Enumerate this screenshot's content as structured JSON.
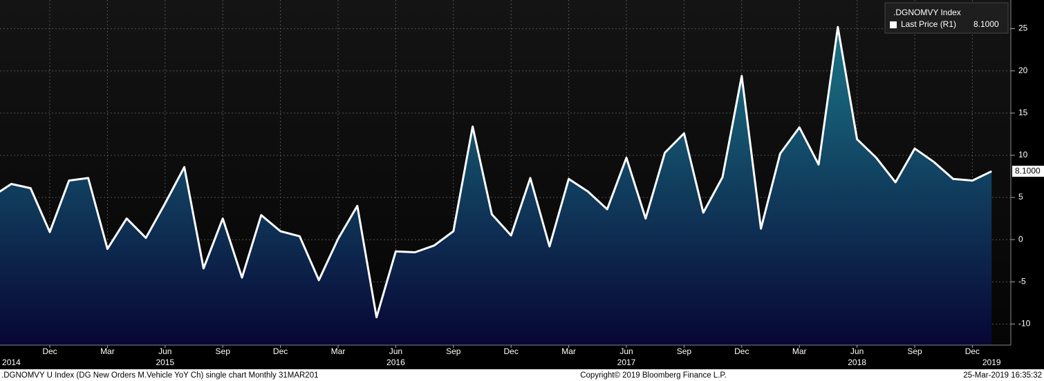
{
  "chart_data": {
    "type": "area",
    "legend_title": ".DGNOMVY Index",
    "footer": {
      "left": ".DGNOMVY U Index (DG New Orders M.Vehicle YoY Ch) single chart  Monthly 31MAR201",
      "center": "Copyright© 2019 Bloomberg Finance L.P.",
      "right": "25-Mar-2019 16:35:32"
    },
    "x": [
      "2014-09",
      "2014-10",
      "2014-11",
      "2014-12",
      "2015-01",
      "2015-02",
      "2015-03",
      "2015-04",
      "2015-05",
      "2015-06",
      "2015-07",
      "2015-08",
      "2015-09",
      "2015-10",
      "2015-11",
      "2015-12",
      "2016-01",
      "2016-02",
      "2016-03",
      "2016-04",
      "2016-05",
      "2016-06",
      "2016-07",
      "2016-08",
      "2016-09",
      "2016-10",
      "2016-11",
      "2016-12",
      "2017-01",
      "2017-02",
      "2017-03",
      "2017-04",
      "2017-05",
      "2017-06",
      "2017-07",
      "2017-08",
      "2017-09",
      "2017-10",
      "2017-11",
      "2017-12",
      "2018-01",
      "2018-02",
      "2018-03",
      "2018-04",
      "2018-05",
      "2018-06",
      "2018-07",
      "2018-08",
      "2018-09",
      "2018-10",
      "2018-11",
      "2018-12",
      "2019-01"
    ],
    "series": [
      {
        "name": "Last Price  (R1)",
        "color": "#ffffff",
        "last_value_label": "8.1000",
        "values": [
          5.1,
          6.6,
          6.1,
          0.9,
          7.0,
          7.3,
          -1.1,
          2.5,
          0.2,
          4.3,
          8.6,
          -3.4,
          2.5,
          -4.5,
          2.9,
          1.0,
          0.4,
          -4.8,
          0.1,
          4.0,
          -9.2,
          -1.4,
          -1.5,
          -0.7,
          1.0,
          13.4,
          3.0,
          0.5,
          7.3,
          -0.8,
          7.2,
          5.7,
          3.6,
          9.7,
          2.5,
          10.3,
          12.6,
          3.2,
          7.4,
          19.4,
          1.3,
          10.2,
          13.3,
          8.9,
          25.2,
          11.9,
          9.7,
          6.8,
          10.8,
          9.2,
          7.2,
          7.0,
          8.1
        ]
      }
    ],
    "xticks": [
      {
        "value": "2014-12",
        "label": "Dec"
      },
      {
        "value": "2015-03",
        "label": "Mar"
      },
      {
        "value": "2015-06",
        "label": "Jun"
      },
      {
        "value": "2015-09",
        "label": "Sep"
      },
      {
        "value": "2015-12",
        "label": "Dec"
      },
      {
        "value": "2016-03",
        "label": "Mar"
      },
      {
        "value": "2016-06",
        "label": "Jun"
      },
      {
        "value": "2016-09",
        "label": "Sep"
      },
      {
        "value": "2016-12",
        "label": "Dec"
      },
      {
        "value": "2017-03",
        "label": "Mar"
      },
      {
        "value": "2017-06",
        "label": "Jun"
      },
      {
        "value": "2017-09",
        "label": "Sep"
      },
      {
        "value": "2017-12",
        "label": "Dec"
      },
      {
        "value": "2018-03",
        "label": "Mar"
      },
      {
        "value": "2018-06",
        "label": "Jun"
      },
      {
        "value": "2018-09",
        "label": "Sep"
      },
      {
        "value": "2018-12",
        "label": "Dec"
      }
    ],
    "year_labels": [
      {
        "value": "2014-10",
        "label": "2014"
      },
      {
        "value": "2015-06",
        "label": "2015"
      },
      {
        "value": "2016-06",
        "label": "2016"
      },
      {
        "value": "2017-06",
        "label": "2017"
      },
      {
        "value": "2018-06",
        "label": "2018"
      },
      {
        "value": "2019-01",
        "label": "2019"
      }
    ],
    "ylim": [
      -12.5,
      28.4
    ],
    "yticks": [
      -10,
      -5,
      0,
      5,
      10,
      15,
      20,
      25
    ],
    "grid": true,
    "fill_gradient": [
      "#1b7687",
      "#070635"
    ]
  }
}
